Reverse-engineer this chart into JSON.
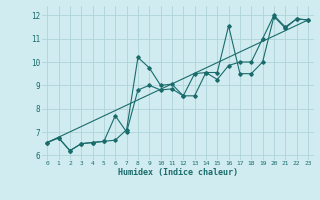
{
  "xlabel": "Humidex (Indice chaleur)",
  "ylabel": "",
  "xlim": [
    -0.5,
    23.5
  ],
  "ylim": [
    5.8,
    12.4
  ],
  "xtick_labels": [
    "0",
    "1",
    "2",
    "3",
    "4",
    "5",
    "6",
    "7",
    "8",
    "9",
    "10",
    "11",
    "12",
    "13",
    "14",
    "15",
    "16",
    "17",
    "18",
    "19",
    "20",
    "21",
    "22",
    "23"
  ],
  "ytick_labels": [
    "6",
    "7",
    "8",
    "9",
    "10",
    "11",
    "12"
  ],
  "ytick_vals": [
    6,
    7,
    8,
    9,
    10,
    11,
    12
  ],
  "bg_color": "#d0ecf0",
  "grid_color": "#aed4da",
  "line_color": "#1a6b6b",
  "line1_x": [
    0,
    1,
    2,
    3,
    4,
    5,
    6,
    7,
    8,
    9,
    10,
    11,
    12,
    13,
    14,
    15,
    16,
    17,
    18,
    19,
    20,
    21,
    22,
    23
  ],
  "line1_y": [
    6.55,
    6.75,
    6.2,
    6.5,
    6.55,
    6.6,
    6.65,
    7.1,
    10.2,
    9.75,
    9.0,
    9.05,
    8.55,
    8.55,
    9.55,
    9.55,
    11.55,
    9.5,
    9.5,
    10.0,
    11.95,
    11.45,
    11.85,
    11.8
  ],
  "line2_x": [
    0,
    1,
    2,
    3,
    4,
    5,
    6,
    7,
    8,
    9,
    10,
    11,
    12,
    13,
    14,
    15,
    16,
    17,
    18,
    19,
    20,
    21,
    22,
    23
  ],
  "line2_y": [
    6.55,
    6.75,
    6.2,
    6.5,
    6.55,
    6.6,
    7.7,
    7.0,
    8.8,
    9.0,
    8.8,
    8.85,
    8.55,
    9.5,
    9.55,
    9.25,
    9.85,
    10.0,
    10.0,
    11.0,
    12.0,
    11.5,
    11.85,
    11.8
  ],
  "line3_x": [
    0,
    23
  ],
  "line3_y": [
    6.55,
    11.8
  ]
}
